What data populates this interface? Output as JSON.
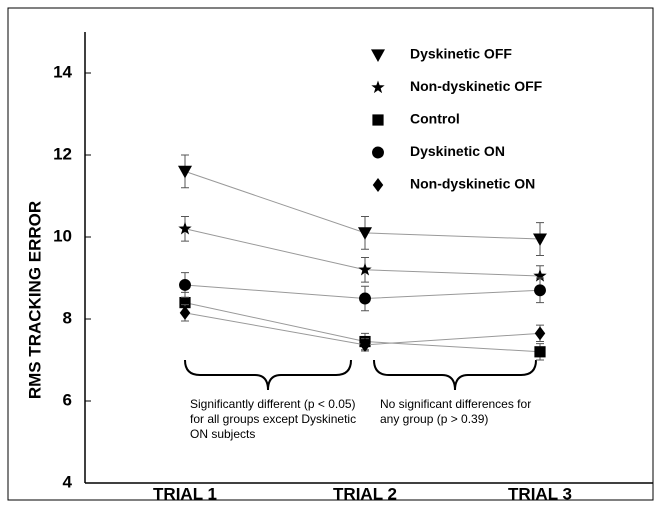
{
  "chart_data": {
    "type": "line",
    "ylabel": "RMS TRACKING ERROR",
    "categories": [
      "TRIAL 1",
      "TRIAL 2",
      "TRIAL 3"
    ],
    "ylim": [
      4,
      15
    ],
    "yticks": [
      4,
      6,
      8,
      10,
      12,
      14
    ],
    "series": [
      {
        "name": "Dyskinetic OFF",
        "marker": "triangle-down",
        "color": "#000000",
        "values": [
          11.6,
          10.1,
          9.95
        ],
        "errors": [
          0.4,
          0.4,
          0.4
        ]
      },
      {
        "name": "Non-dyskinetic OFF",
        "marker": "star",
        "color": "#000000",
        "values": [
          10.2,
          9.2,
          9.05
        ],
        "errors": [
          0.3,
          0.3,
          0.25
        ]
      },
      {
        "name": "Control",
        "marker": "square",
        "color": "#000000",
        "values": [
          8.4,
          7.45,
          7.2
        ],
        "errors": [
          0.25,
          0.2,
          0.2
        ]
      },
      {
        "name": "Dyskinetic ON",
        "marker": "circle",
        "color": "#000000",
        "values": [
          8.83,
          8.5,
          8.7
        ],
        "errors": [
          0.3,
          0.3,
          0.3
        ]
      },
      {
        "name": "Non-dyskinetic ON",
        "marker": "diamond",
        "color": "#000000",
        "values": [
          8.15,
          7.37,
          7.65
        ],
        "errors": [
          0.2,
          0.15,
          0.2
        ]
      }
    ],
    "annotations": [
      [
        "Significantly different (p < 0.05)",
        "for all groups except Dyskinetic",
        "ON subjects"
      ],
      [
        "No significant differences for",
        "any group (p > 0.39)"
      ]
    ]
  }
}
